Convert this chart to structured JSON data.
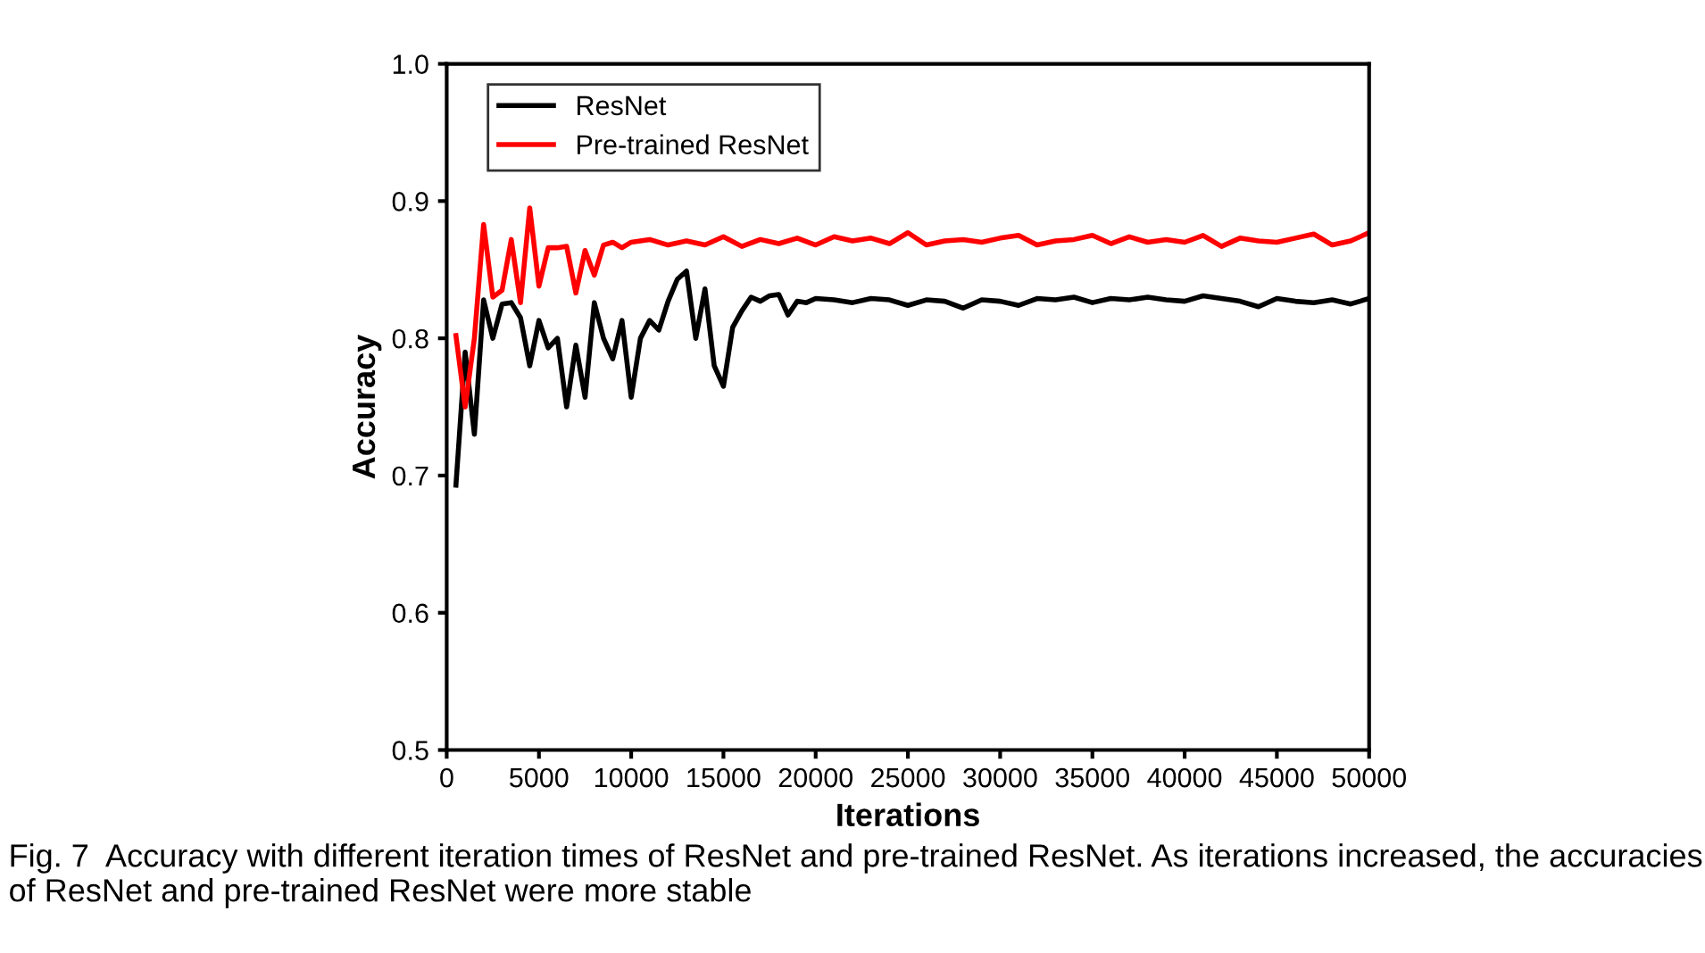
{
  "chart_data": {
    "type": "line",
    "xlabel": "Iterations",
    "ylabel": "Accuracy",
    "xlim": [
      0,
      50000
    ],
    "xticks": [
      0,
      5000,
      10000,
      15000,
      20000,
      25000,
      30000,
      35000,
      40000,
      45000,
      50000
    ],
    "ylim": [
      0.5,
      1.0
    ],
    "yticks": [
      0.5,
      0.6,
      0.7,
      0.8,
      0.9,
      {
        "value": 1,
        "label": "1.0"
      }
    ],
    "grid": false,
    "legend": "top left",
    "marker": "none",
    "line_style": "solid",
    "annotations": [
      "Fig. 7  Accuracy with different iteration times of ResNet and pre-trained ResNet. As iterations increased, the accuracies of ResNet and pre-trained ResNet were more stable"
    ],
    "series": [
      {
        "name": "ResNet",
        "color": "#000000",
        "x": [
          500,
          1000,
          1500,
          2000,
          2500,
          3000,
          3500,
          4000,
          4500,
          5000,
          5500,
          6000,
          6500,
          7000,
          7500,
          8000,
          8500,
          9000,
          9500,
          10000,
          10500,
          11000,
          11500,
          12000,
          12500,
          13000,
          13500,
          14000,
          14500,
          15000,
          15500,
          16000,
          16500,
          17000,
          17500,
          18000,
          18500,
          19000,
          19500,
          20000,
          21000,
          22000,
          23000,
          24000,
          25000,
          26000,
          27000,
          28000,
          29000,
          30000,
          31000,
          32000,
          33000,
          34000,
          35000,
          36000,
          37000,
          38000,
          39000,
          40000,
          41000,
          42000,
          43000,
          44000,
          45000,
          46000,
          47000,
          48000,
          49000,
          50000
        ],
        "values": [
          0.693,
          0.79,
          0.73,
          0.828,
          0.8,
          0.825,
          0.826,
          0.815,
          0.78,
          0.813,
          0.793,
          0.8,
          0.75,
          0.795,
          0.757,
          0.826,
          0.8,
          0.785,
          0.813,
          0.757,
          0.8,
          0.813,
          0.806,
          0.827,
          0.843,
          0.849,
          0.8,
          0.836,
          0.78,
          0.765,
          0.808,
          0.82,
          0.83,
          0.827,
          0.831,
          0.832,
          0.817,
          0.827,
          0.826,
          0.829,
          0.828,
          0.826,
          0.829,
          0.828,
          0.824,
          0.828,
          0.827,
          0.822,
          0.828,
          0.827,
          0.824,
          0.829,
          0.828,
          0.83,
          0.826,
          0.829,
          0.828,
          0.83,
          0.828,
          0.827,
          0.831,
          0.829,
          0.827,
          0.823,
          0.829,
          0.827,
          0.826,
          0.828,
          0.825,
          0.829
        ]
      },
      {
        "name": "Pre-trained ResNet",
        "color": "#ff0000",
        "x": [
          500,
          1000,
          1500,
          2000,
          2500,
          3000,
          3500,
          4000,
          4500,
          5000,
          5500,
          6000,
          6500,
          7000,
          7500,
          8000,
          8500,
          9000,
          9500,
          10000,
          11000,
          12000,
          13000,
          14000,
          15000,
          16000,
          17000,
          18000,
          19000,
          20000,
          21000,
          22000,
          23000,
          24000,
          25000,
          26000,
          27000,
          28000,
          29000,
          30000,
          31000,
          32000,
          33000,
          34000,
          35000,
          36000,
          37000,
          38000,
          39000,
          40000,
          41000,
          42000,
          43000,
          44000,
          45000,
          46000,
          47000,
          48000,
          49000,
          50000
        ],
        "values": [
          0.802,
          0.75,
          0.8,
          0.883,
          0.83,
          0.835,
          0.872,
          0.826,
          0.895,
          0.838,
          0.866,
          0.866,
          0.867,
          0.833,
          0.864,
          0.846,
          0.868,
          0.87,
          0.866,
          0.87,
          0.872,
          0.868,
          0.871,
          0.868,
          0.874,
          0.867,
          0.872,
          0.869,
          0.873,
          0.868,
          0.874,
          0.871,
          0.873,
          0.869,
          0.877,
          0.868,
          0.871,
          0.872,
          0.87,
          0.873,
          0.875,
          0.868,
          0.871,
          0.872,
          0.875,
          0.869,
          0.874,
          0.87,
          0.872,
          0.87,
          0.875,
          0.867,
          0.873,
          0.871,
          0.87,
          0.873,
          0.876,
          0.868,
          0.871,
          0.877
        ]
      }
    ]
  }
}
